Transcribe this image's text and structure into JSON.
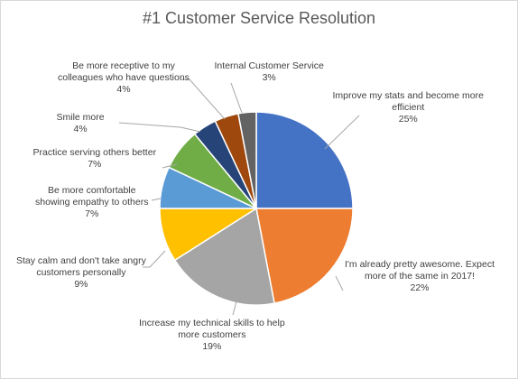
{
  "chart_data": {
    "type": "pie",
    "title": "#1 Customer Service Resolution",
    "slices": [
      {
        "label_lines": [
          "Improve my stats and become more",
          "efficient"
        ],
        "value": 25,
        "value_label": "25%",
        "color": "#4472c4"
      },
      {
        "label_lines": [
          "I'm already pretty awesome. Expect",
          "more of the same in 2017!"
        ],
        "value": 22,
        "value_label": "22%",
        "color": "#ed7d31"
      },
      {
        "label_lines": [
          "Increase my technical skills to help",
          "more customers"
        ],
        "value": 19,
        "value_label": "19%",
        "color": "#a5a5a5"
      },
      {
        "label_lines": [
          "Stay calm and don't take angry",
          "customers personally"
        ],
        "value": 9,
        "value_label": "9%",
        "color": "#ffc000"
      },
      {
        "label_lines": [
          "Be more comfortable",
          "showing empathy to others"
        ],
        "value": 7,
        "value_label": "7%",
        "color": "#5b9bd5"
      },
      {
        "label_lines": [
          "Practice serving others better"
        ],
        "value": 7,
        "value_label": "7%",
        "color": "#70ad47"
      },
      {
        "label_lines": [
          "Smile more"
        ],
        "value": 4,
        "value_label": "4%",
        "color": "#264478"
      },
      {
        "label_lines": [
          "Be more receptive to my",
          "colleagues who have questions"
        ],
        "value": 4,
        "value_label": "4%",
        "color": "#9e480e"
      },
      {
        "label_lines": [
          "Internal Customer Service"
        ],
        "value": 3,
        "value_label": "3%",
        "color": "#636363"
      }
    ]
  }
}
